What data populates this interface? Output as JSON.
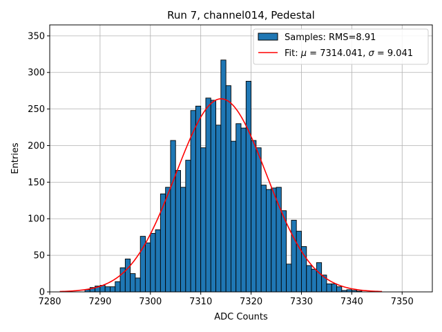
{
  "chart_data": {
    "type": "bar",
    "title": "Run 7, channel014, Pedestal",
    "xlabel": "ADC Counts",
    "ylabel": "Entries",
    "xlim": [
      7280,
      7356
    ],
    "ylim": [
      0,
      365
    ],
    "xticks": [
      7280,
      7290,
      7300,
      7310,
      7320,
      7330,
      7340,
      7350
    ],
    "yticks": [
      0,
      50,
      100,
      150,
      200,
      250,
      300,
      350
    ],
    "grid": true,
    "legend_position": "top-right",
    "histogram": {
      "name": "Samples: RMS=8.91",
      "color": "#1f77b4",
      "bin_width": 1,
      "bin_start": 7287,
      "counts": [
        3,
        6,
        8,
        9,
        7,
        7,
        14,
        33,
        45,
        25,
        19,
        76,
        67,
        80,
        85,
        134,
        143,
        207,
        166,
        143,
        180,
        248,
        254,
        197,
        265,
        262,
        228,
        317,
        282,
        206,
        230,
        224,
        288,
        207,
        197,
        146,
        140,
        142,
        143,
        111,
        38,
        98,
        83,
        62,
        36,
        31,
        40,
        23,
        11,
        11,
        7,
        2,
        3,
        2,
        1
      ]
    },
    "fit": {
      "name": "Fit: μ = 7314.041, σ = 9.041",
      "legend_prefix": "Fit: ",
      "mu_symbol": "μ",
      "mu_text": " = 7314.041, ",
      "sigma_symbol": "σ",
      "sigma_text": " = 9.041",
      "mu": 7314.041,
      "sigma": 9.041,
      "amplitude": 264,
      "x_range": [
        7282,
        7346
      ],
      "color": "#ff0000"
    }
  }
}
